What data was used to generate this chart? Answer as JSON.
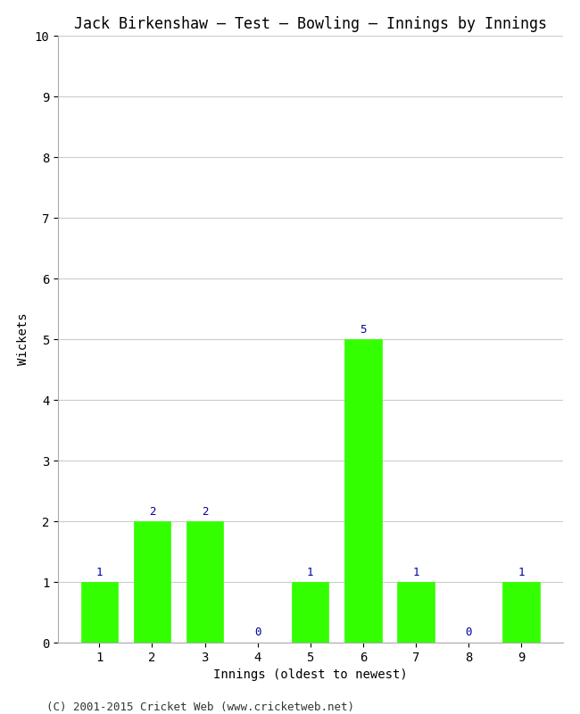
{
  "title": "Jack Birkenshaw – Test – Bowling – Innings by Innings",
  "xlabel": "Innings (oldest to newest)",
  "ylabel": "Wickets",
  "categories": [
    1,
    2,
    3,
    4,
    5,
    6,
    7,
    8,
    9
  ],
  "values": [
    1,
    2,
    2,
    0,
    1,
    5,
    1,
    0,
    1
  ],
  "bar_color": "#33ff00",
  "bar_edge_color": "#33ff00",
  "label_color": "#000099",
  "ylim": [
    0,
    10
  ],
  "yticks": [
    0,
    1,
    2,
    3,
    4,
    5,
    6,
    7,
    8,
    9,
    10
  ],
  "background_color": "#ffffff",
  "grid_color": "#cccccc",
  "title_fontsize": 12,
  "axis_label_fontsize": 10,
  "tick_fontsize": 10,
  "bar_label_fontsize": 9,
  "footer": "(C) 2001-2015 Cricket Web (www.cricketweb.net)",
  "footer_fontsize": 9
}
